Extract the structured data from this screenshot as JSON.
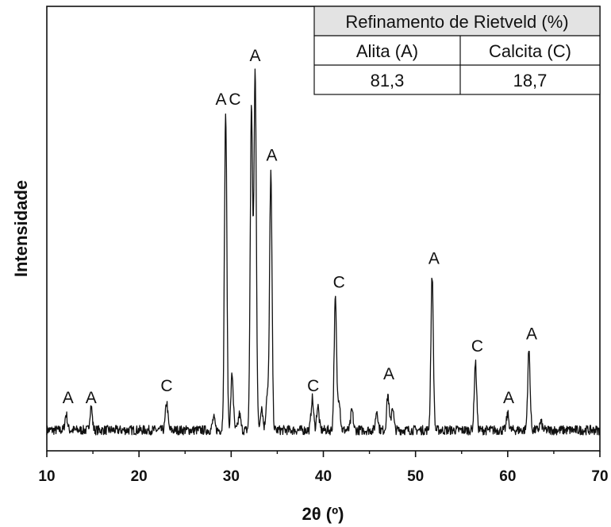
{
  "chart_data": {
    "type": "line",
    "title": "",
    "xlabel": "2θ (º)",
    "ylabel": "Intensidade",
    "xlim": [
      10,
      70
    ],
    "ylim": [
      0,
      1
    ],
    "x_ticks": [
      10,
      20,
      30,
      40,
      50,
      60,
      70
    ],
    "y_ticks_shown": false,
    "grid": false,
    "baseline": 0.05,
    "noise_amplitude": 0.012,
    "peaks": [
      {
        "x": 12.1,
        "y": 0.09
      },
      {
        "x": 14.8,
        "y": 0.11
      },
      {
        "x": 23.0,
        "y": 0.12
      },
      {
        "x": 28.1,
        "y": 0.08
      },
      {
        "x": 29.4,
        "y": 0.85
      },
      {
        "x": 30.1,
        "y": 0.19
      },
      {
        "x": 30.9,
        "y": 0.09
      },
      {
        "x": 32.2,
        "y": 0.86
      },
      {
        "x": 32.6,
        "y": 0.95
      },
      {
        "x": 33.3,
        "y": 0.11
      },
      {
        "x": 33.9,
        "y": 0.14
      },
      {
        "x": 34.3,
        "y": 0.7
      },
      {
        "x": 38.8,
        "y": 0.13
      },
      {
        "x": 39.4,
        "y": 0.11
      },
      {
        "x": 41.3,
        "y": 0.38
      },
      {
        "x": 41.7,
        "y": 0.13
      },
      {
        "x": 43.1,
        "y": 0.1
      },
      {
        "x": 45.8,
        "y": 0.1
      },
      {
        "x": 47.0,
        "y": 0.14
      },
      {
        "x": 47.5,
        "y": 0.11
      },
      {
        "x": 51.8,
        "y": 0.44
      },
      {
        "x": 56.5,
        "y": 0.22
      },
      {
        "x": 60.0,
        "y": 0.09
      },
      {
        "x": 62.3,
        "y": 0.25
      },
      {
        "x": 63.6,
        "y": 0.07
      }
    ],
    "peak_labels": [
      {
        "text": "A",
        "x": 12.3,
        "y": 0.11
      },
      {
        "text": "A",
        "x": 14.8,
        "y": 0.11
      },
      {
        "text": "C",
        "x": 23.0,
        "y": 0.14
      },
      {
        "text": "A",
        "x": 28.9,
        "y": 0.86
      },
      {
        "text": "C",
        "x": 30.4,
        "y": 0.86
      },
      {
        "text": "A",
        "x": 32.6,
        "y": 0.97
      },
      {
        "text": "A",
        "x": 34.4,
        "y": 0.72
      },
      {
        "text": "C",
        "x": 38.9,
        "y": 0.14
      },
      {
        "text": "C",
        "x": 41.7,
        "y": 0.4
      },
      {
        "text": "A",
        "x": 47.1,
        "y": 0.17
      },
      {
        "text": "A",
        "x": 52.0,
        "y": 0.46
      },
      {
        "text": "C",
        "x": 56.7,
        "y": 0.24
      },
      {
        "text": "A",
        "x": 60.1,
        "y": 0.11
      },
      {
        "text": "A",
        "x": 62.6,
        "y": 0.27
      }
    ],
    "table": {
      "title": "Refinamento de Rietveld (%)",
      "headers": [
        "Alita (A)",
        "Calcita (C)"
      ],
      "values": [
        "81,3",
        "18,7"
      ]
    },
    "colors": {
      "line": "#111111",
      "table_header_bg": "#e3e3e3"
    }
  }
}
